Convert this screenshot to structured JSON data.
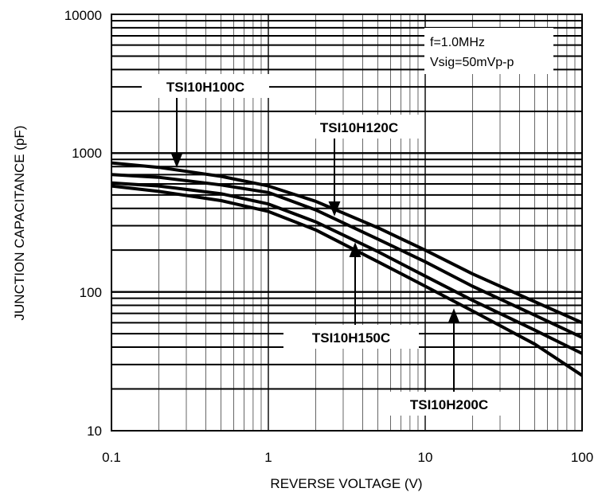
{
  "chart_data": {
    "type": "line",
    "title": "",
    "xlabel": "REVERSE VOLTAGE (V)",
    "ylabel": "JUNCTION CAPACITANCE (pF)",
    "xscale": "log",
    "yscale": "log",
    "xlim": [
      0.1,
      100
    ],
    "ylim": [
      10,
      10000
    ],
    "x_tick_labels": [
      "0.1",
      "1",
      "10",
      "100"
    ],
    "y_tick_labels": [
      "10",
      "100",
      "1000",
      "10000"
    ],
    "grid": true,
    "conditions": [
      "f=1.0MHz",
      "Vsig=50mVp-p"
    ],
    "series": [
      {
        "name": "TSI10H100C",
        "color": "#000000",
        "x": [
          0.1,
          0.2,
          0.5,
          1,
          2,
          5,
          10,
          20,
          50,
          100
        ],
        "y": [
          850,
          790,
          680,
          580,
          450,
          290,
          200,
          135,
          85,
          60
        ]
      },
      {
        "name": "TSI10H120C",
        "color": "#000000",
        "x": [
          0.1,
          0.2,
          0.5,
          1,
          2,
          5,
          10,
          20,
          50,
          100
        ],
        "y": [
          700,
          670,
          590,
          520,
          390,
          240,
          165,
          110,
          68,
          47
        ]
      },
      {
        "name": "TSI10H150C",
        "color": "#000000",
        "x": [
          0.1,
          0.2,
          0.5,
          1,
          2,
          5,
          10,
          20,
          50,
          100
        ],
        "y": [
          610,
          580,
          510,
          430,
          320,
          195,
          130,
          87,
          53,
          36
        ]
      },
      {
        "name": "TSI10H200C",
        "color": "#000000",
        "x": [
          0.1,
          0.2,
          0.5,
          1,
          2,
          5,
          10,
          20,
          50,
          100
        ],
        "y": [
          580,
          530,
          455,
          380,
          280,
          165,
          110,
          73,
          42,
          25
        ]
      }
    ],
    "annotations": [
      {
        "text": "TSI10H100C",
        "arrow_to_series": "TSI10H100C"
      },
      {
        "text": "TSI10H120C",
        "arrow_to_series": "TSI10H120C"
      },
      {
        "text": "TSI10H150C",
        "arrow_to_series": "TSI10H150C"
      },
      {
        "text": "TSI10H200C",
        "arrow_to_series": "TSI10H200C"
      }
    ]
  }
}
